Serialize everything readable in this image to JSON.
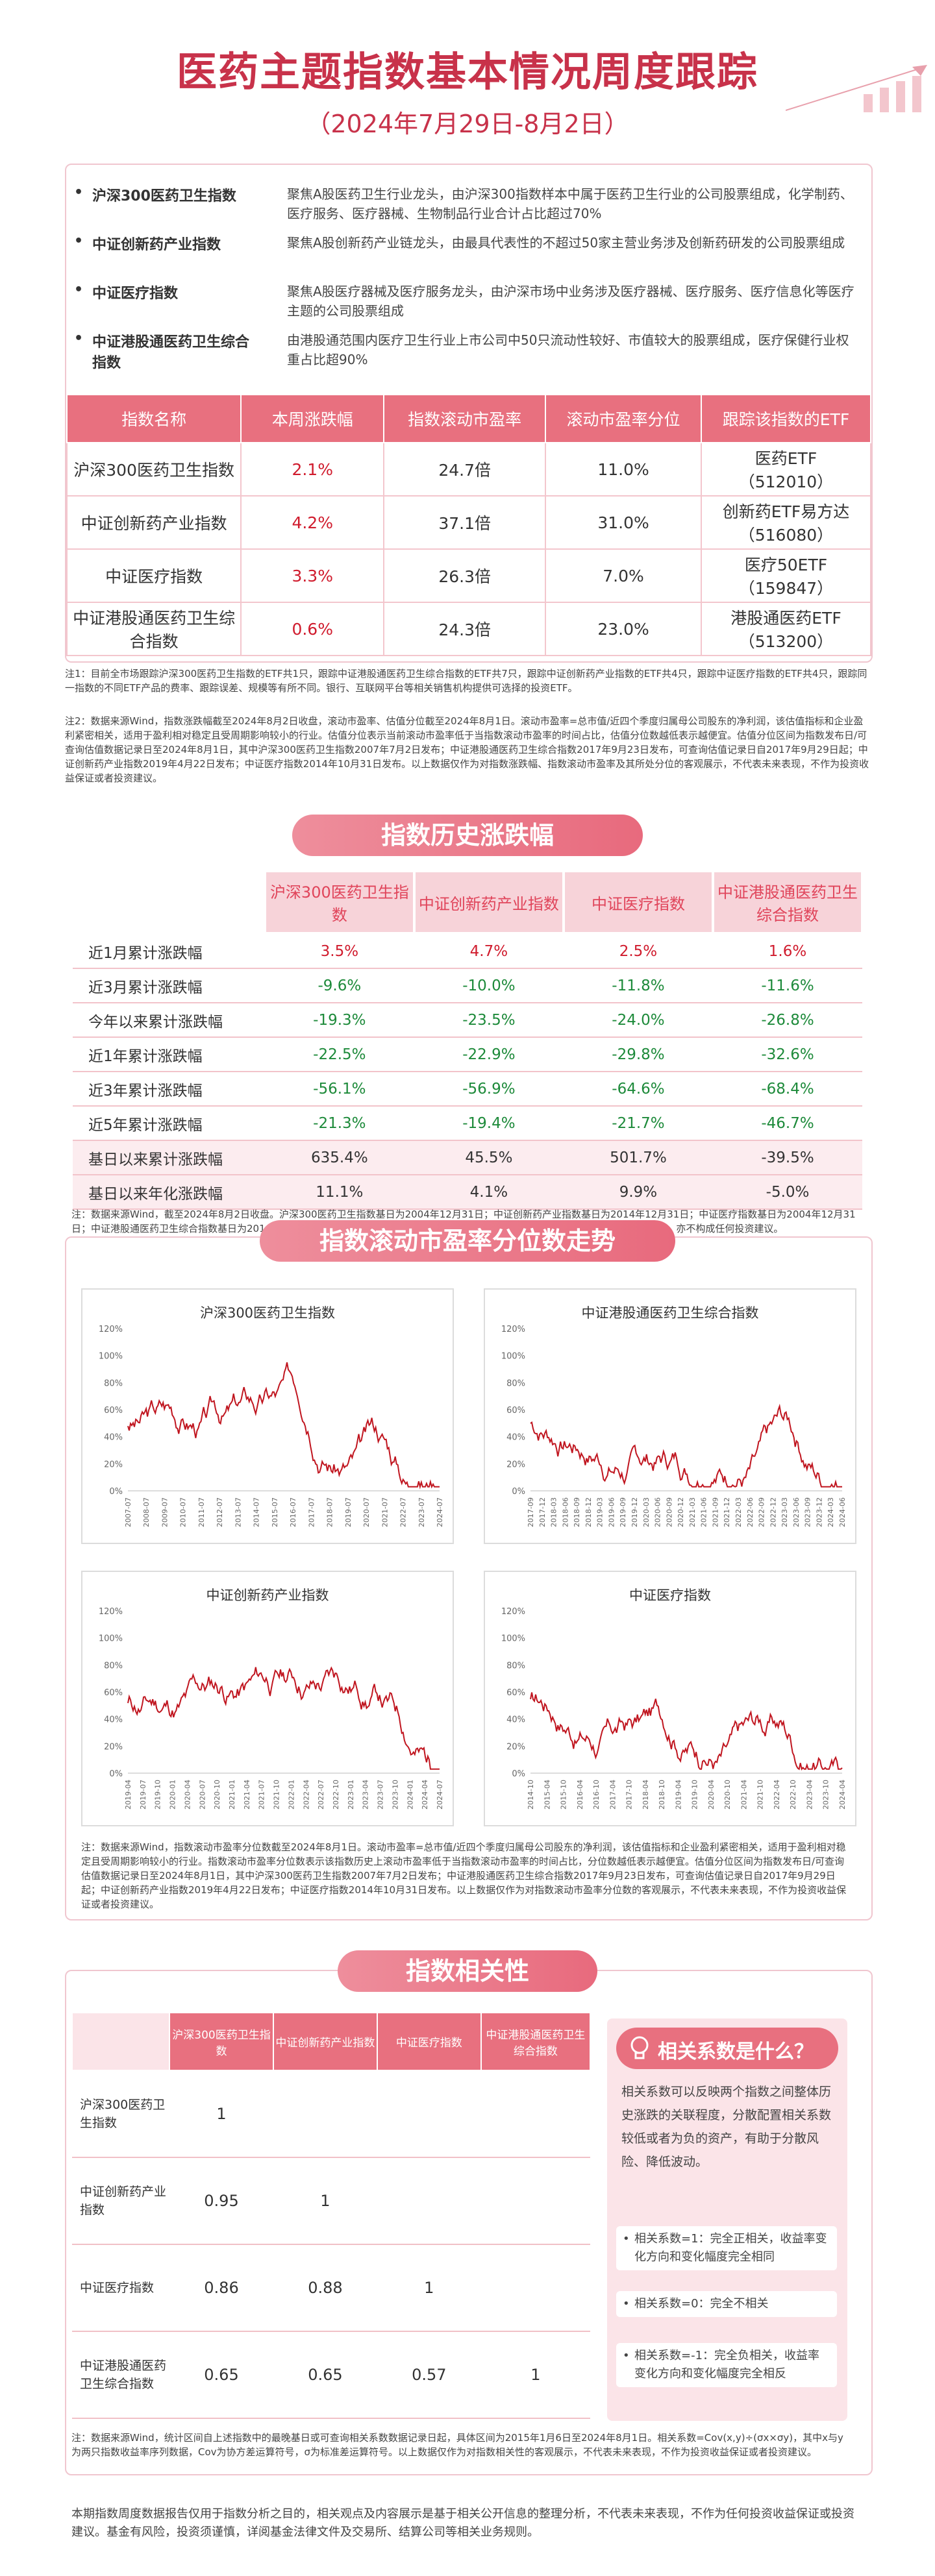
{
  "header": {
    "title": "医药主题指数基本情况周度跟踪",
    "date_range": "（2024年7月29日-8月2日）"
  },
  "intro": [
    {
      "name": "沪深300医药卫生指数",
      "desc": "聚焦A股医药卫生行业龙头，由沪深300指数样本中属于医药卫生行业的公司股票组成，化学制药、医疗服务、医疗器械、生物制品行业合计占比超过70%"
    },
    {
      "name": "中证创新药产业指数",
      "desc": "聚焦A股创新药产业链龙头，由最具代表性的不超过50家主营业务涉及创新药研发的公司股票组成"
    },
    {
      "name": "中证医疗指数",
      "desc": "聚焦A股医疗器械及医疗服务龙头，由沪深市场中业务涉及医疗器械、医疗服务、医疗信息化等医疗主题的公司股票组成"
    },
    {
      "name": "中证港股通医药卫生综合指数",
      "desc": "由港股通范围内医疗卫生行业上市公司中50只流动性较好、市值较大的股票组成，医疗保健行业权重占比超90%"
    }
  ],
  "etf_table": {
    "headers": [
      "指数名称",
      "本周涨跌幅",
      "指数滚动市盈率",
      "滚动市盈率分位",
      "跟踪该指数的ETF"
    ],
    "rows": [
      {
        "name": "沪深300医药卫生指数",
        "change": "2.1%",
        "pe": "24.7倍",
        "pct": "11.0%",
        "etf": "医药ETF",
        "code": "（512010）"
      },
      {
        "name": "中证创新药产业指数",
        "change": "4.2%",
        "pe": "37.1倍",
        "pct": "31.0%",
        "etf": "创新药ETF易方达",
        "code": "（516080）"
      },
      {
        "name": "中证医疗指数",
        "change": "3.3%",
        "pe": "26.3倍",
        "pct": "7.0%",
        "etf": "医疗50ETF",
        "code": "（159847）"
      },
      {
        "name": "中证港股通医药卫生综合指数",
        "change": "0.6%",
        "pe": "24.3倍",
        "pct": "23.0%",
        "etf": "港股通医药ETF",
        "code": "（513200）"
      }
    ]
  },
  "notes1": [
    "注1：目前全市场跟踪沪深300医药卫生指数的ETF共1只，跟踪中证港股通医药卫生综合指数的ETF共7只，跟踪中证创新药产业指数的ETF共4只，跟踪中证医疗指数的ETF共4只，跟踪同一指数的不同ETF产品的费率、跟踪误差、规模等有所不同。银行、互联网平台等相关销售机构提供可选择的投资ETF。",
    "注2：数据来源Wind，指数涨跌幅截至2024年8月2日收盘，滚动市盈率、估值分位截至2024年8月1日。滚动市盈率=总市值/近四个季度归属母公司股东的净利润，该估值指标和企业盈利紧密相关，适用于盈利相对稳定且受周期影响较小的行业。估值分位表示当前滚动市盈率低于当指数滚动市盈率的时间占比，估值分位数越低表示越便宜。估值分位区间为指数发布日/可查询估值数据记录日至2024年8月1日，其中沪深300医药卫生指数2007年7月2日发布；中证港股通医药卫生综合指数2017年9月23日发布，可查询估值记录日自2017年9月29日起；中证创新药产业指数2019年4月22日发布；中证医疗指数2014年10月31日发布。以上数据仅作为对指数涨跌幅、指数滚动市盈率及其所处分位的客观展示，不代表未来表现，不作为投资收益保证或者投资建议。"
  ],
  "history": {
    "banner": "指数历史涨跌幅",
    "headers": [
      "沪深300医药卫生指数",
      "中证创新药产业指数",
      "中证医疗指数",
      "中证港股通医药卫生综合指数"
    ],
    "rows": [
      {
        "label": "近1月累计涨跌幅",
        "values": [
          "3.5%",
          "4.7%",
          "2.5%",
          "1.6%"
        ]
      },
      {
        "label": "近3月累计涨跌幅",
        "values": [
          "-9.6%",
          "-10.0%",
          "-11.8%",
          "-11.6%"
        ]
      },
      {
        "label": "今年以来累计涨跌幅",
        "values": [
          "-19.3%",
          "-23.5%",
          "-24.0%",
          "-26.8%"
        ]
      },
      {
        "label": "近1年累计涨跌幅",
        "values": [
          "-22.5%",
          "-22.9%",
          "-29.8%",
          "-32.6%"
        ]
      },
      {
        "label": "近3年累计涨跌幅",
        "values": [
          "-56.1%",
          "-56.9%",
          "-64.6%",
          "-68.4%"
        ]
      },
      {
        "label": "近5年累计涨跌幅",
        "values": [
          "-21.3%",
          "-19.4%",
          "-21.7%",
          "-46.7%"
        ]
      },
      {
        "label": "基日以来累计涨跌幅",
        "values": [
          "635.4%",
          "45.5%",
          "501.7%",
          "-39.5%"
        ]
      },
      {
        "label": "基日以来年化涨跌幅",
        "values": [
          "11.1%",
          "4.1%",
          "9.9%",
          "-5.0%"
        ]
      }
    ],
    "note": "注：数据来源Wind，截至2024年8月2日收盘。沪深300医药卫生指数基日为2004年12月31日；中证创新药产业指数基日为2014年12月31日；中证医疗指数基日为2004年12月31日；中证港股通医药卫生综合指数基日为2014年11月14日。以上仅作为指数历史行情的客观展示，不代表未来表现，不作为投资收益保证，亦不构成任何投资建议。"
  },
  "pe_section": {
    "banner": "指数滚动市盈率分位数走势",
    "charts": [
      {
        "title": "沪深300医药卫生指数",
        "color": "#c0151f",
        "seed": 3,
        "x_ticks": [
          "2007-07",
          "2008-07",
          "2009-07",
          "2010-07",
          "2011-07",
          "2012-07",
          "2013-07",
          "2014-07",
          "2015-07",
          "2016-07",
          "2017-07",
          "2018-07",
          "2019-07",
          "2020-07",
          "2021-07",
          "2022-07",
          "2023-07",
          "2024-07"
        ]
      },
      {
        "title": "中证港股通医药卫生综合指数",
        "color": "#c0151f",
        "seed": 7,
        "x_ticks": [
          "2017-09",
          "2017-12",
          "2018-03",
          "2018-06",
          "2018-09",
          "2018-12",
          "2019-03",
          "2019-06",
          "2019-09",
          "2019-12",
          "2020-03",
          "2020-06",
          "2020-09",
          "2020-12",
          "2021-03",
          "2021-06",
          "2021-09",
          "2021-12",
          "2022-03",
          "2022-06",
          "2022-09",
          "2022-12",
          "2023-03",
          "2023-06",
          "2023-09",
          "2023-12",
          "2024-03",
          "2024-06"
        ]
      },
      {
        "title": "中证创新药产业指数",
        "color": "#c0151f",
        "seed": 11,
        "x_ticks": [
          "2019-04",
          "2019-07",
          "2019-10",
          "2020-01",
          "2020-04",
          "2020-07",
          "2020-10",
          "2021-01",
          "2021-04",
          "2021-07",
          "2021-10",
          "2022-01",
          "2022-04",
          "2022-07",
          "2022-10",
          "2023-01",
          "2023-04",
          "2023-07",
          "2023-10",
          "2024-01",
          "2024-04",
          "2024-07"
        ]
      },
      {
        "title": "中证医疗指数",
        "color": "#c0151f",
        "seed": 17,
        "x_ticks": [
          "2014-10",
          "2015-04",
          "2015-10",
          "2016-04",
          "2016-10",
          "2017-04",
          "2017-10",
          "2018-04",
          "2018-10",
          "2019-04",
          "2019-10",
          "2020-04",
          "2020-10",
          "2021-04",
          "2021-10",
          "2022-04",
          "2022-10",
          "2023-04",
          "2023-10",
          "2024-04"
        ]
      }
    ],
    "y_ticks": [
      "0%",
      "20%",
      "40%",
      "60%",
      "80%",
      "100%",
      "120%"
    ],
    "note": "注：数据来源Wind，指数滚动市盈率分位数截至2024年8月1日。滚动市盈率=总市值/近四个季度归属母公司股东的净利润，该估值指标和企业盈利紧密相关，适用于盈利相对稳定且受周期影响较小的行业。指数滚动市盈率分位数表示该指数历史上滚动市盈率低于当指数滚动市盈率的时间占比，分位数越低表示越便宜。估值分位区间为指数发布日/可查询估值数据记录日至2024年8月1日，其中沪深300医药卫生指数2007年7月2日发布；中证港股通医药卫生综合指数2017年9月23日发布，可查询估值记录日自2017年9月29日起；中证创新药产业指数2019年4月22日发布；中证医疗指数2014年10月31日发布。以上数据仅作为对指数滚动市盈率分位数的客观展示，不代表未来表现，不作为投资收益保证或者投资建议。"
  },
  "corr": {
    "banner": "指数相关性",
    "headers": [
      "沪深300医药卫生指数",
      "中证创新药产业指数",
      "中证医疗指数",
      "中证港股通医药卫生综合指数"
    ],
    "rows": [
      {
        "label": "沪深300医药卫生指数",
        "values": [
          "1",
          "",
          "",
          ""
        ]
      },
      {
        "label": "中证创新药产业指数",
        "values": [
          "0.95",
          "1",
          "",
          ""
        ]
      },
      {
        "label": "中证医疗指数",
        "values": [
          "0.86",
          "0.88",
          "1",
          ""
        ]
      },
      {
        "label": "中证港股通医药卫生综合指数",
        "values": [
          "0.65",
          "0.65",
          "0.57",
          "1"
        ]
      }
    ],
    "info_title": "相关系数是什么？",
    "info_desc": "相关系数可以反映两个指数之间整体历史涨跌的关联程度，分散配置相关系数较低或者为负的资产，有助于分散风险、降低波动。",
    "info_items": [
      "相关系数=1：完全正相关，收益率变化方向和变化幅度完全相同",
      "相关系数=0：完全不相关",
      "相关系数=-1：完全负相关，收益率变化方向和变化幅度完全相反"
    ],
    "note": "注：数据来源Wind，统计区间自上述指数中的最晚基日或可查询相关系数数据记录日起，具体区间为2015年1月6日至2024年8月1日。相关系数=Cov(x,y)÷(σx×σy)，其中x与y为两只指数收益率序列数据，Cov为协方差运算符号，σ为标准差运算符号。以上数据仅作为对指数相关性的客观展示，不代表未来表现，不作为投资收益保证或者投资建议。"
  },
  "footer": "本期指数周度数据报告仅用于指数分析之目的，相关观点及内容展示是基于相关公开信息的整理分析，不代表未来表现，不作为任何投资收益保证或投资建议。基金有风险，投资须谨慎，详阅基金法律文件及交易所、结算公司等相关业务规则。",
  "colors": {
    "accent": "#c8324a",
    "header_bg": "#e8707f",
    "up": "#d01b2d",
    "down": "#1d8a3a"
  }
}
